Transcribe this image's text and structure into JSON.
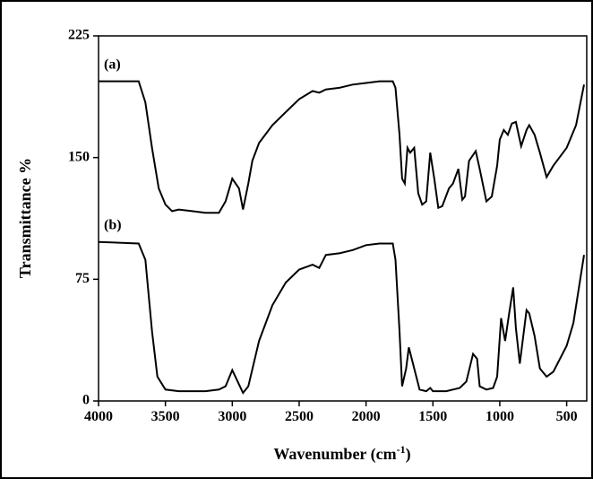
{
  "chart_data": {
    "type": "line",
    "ylabel": "Transmittance %",
    "xlabel": "Wavenumber (cm",
    "xlabel_sup": "-1",
    "xlabel_end": ")",
    "xlim": [
      4000,
      350
    ],
    "xticks": [
      4000,
      3500,
      3000,
      2500,
      2000,
      1500,
      1000,
      500
    ],
    "ylim": [
      0,
      225
    ],
    "yticks": [
      0,
      75,
      150,
      225
    ],
    "series": [
      {
        "name": "(a)",
        "color": "#000000",
        "x": [
          4000,
          3700,
          3650,
          3600,
          3550,
          3500,
          3450,
          3400,
          3300,
          3200,
          3100,
          3050,
          3000,
          2950,
          2920,
          2880,
          2850,
          2800,
          2700,
          2600,
          2500,
          2400,
          2350,
          2300,
          2200,
          2100,
          2000,
          1900,
          1800,
          1780,
          1750,
          1730,
          1710,
          1690,
          1670,
          1640,
          1610,
          1580,
          1550,
          1520,
          1490,
          1460,
          1430,
          1380,
          1350,
          1310,
          1280,
          1260,
          1230,
          1180,
          1150,
          1100,
          1060,
          1020,
          1000,
          970,
          940,
          910,
          880,
          840,
          800,
          780,
          740,
          700,
          650,
          600,
          500,
          430,
          370
        ],
        "values": [
          197,
          197,
          184,
          156,
          131,
          121,
          117,
          118,
          117,
          116,
          116,
          123,
          137,
          131,
          118,
          134,
          148,
          159,
          170,
          178,
          186,
          191,
          190,
          192,
          193,
          195,
          196,
          197,
          197,
          193,
          164,
          137,
          134,
          156,
          153,
          156,
          128,
          121,
          123,
          153,
          137,
          119,
          120,
          131,
          134,
          143,
          124,
          126,
          148,
          154,
          143,
          123,
          126,
          145,
          161,
          167,
          164,
          171,
          172,
          157,
          167,
          170,
          164,
          153,
          138,
          145,
          156,
          170,
          195
        ]
      },
      {
        "name": "(b)",
        "color": "#000000",
        "x": [
          4000,
          3700,
          3650,
          3600,
          3560,
          3500,
          3400,
          3300,
          3200,
          3100,
          3050,
          3000,
          2960,
          2920,
          2880,
          2800,
          2700,
          2600,
          2500,
          2400,
          2350,
          2300,
          2200,
          2100,
          2000,
          1900,
          1800,
          1780,
          1750,
          1730,
          1700,
          1680,
          1640,
          1600,
          1550,
          1520,
          1500,
          1400,
          1300,
          1250,
          1200,
          1170,
          1150,
          1100,
          1050,
          1020,
          990,
          960,
          930,
          900,
          880,
          850,
          800,
          780,
          740,
          700,
          650,
          600,
          500,
          450,
          370
        ],
        "values": [
          98,
          97,
          87,
          43,
          15,
          7,
          6,
          6,
          6,
          7,
          9,
          19,
          12,
          5,
          9,
          37,
          59,
          73,
          81,
          84,
          82,
          90,
          91,
          93,
          96,
          97,
          97,
          87,
          43,
          9,
          20,
          33,
          20,
          7,
          6,
          8,
          6,
          6,
          8,
          12,
          29,
          26,
          9,
          7,
          8,
          15,
          51,
          37,
          54,
          70,
          45,
          23,
          56,
          54,
          40,
          20,
          15,
          18,
          34,
          48,
          90
        ]
      }
    ]
  }
}
